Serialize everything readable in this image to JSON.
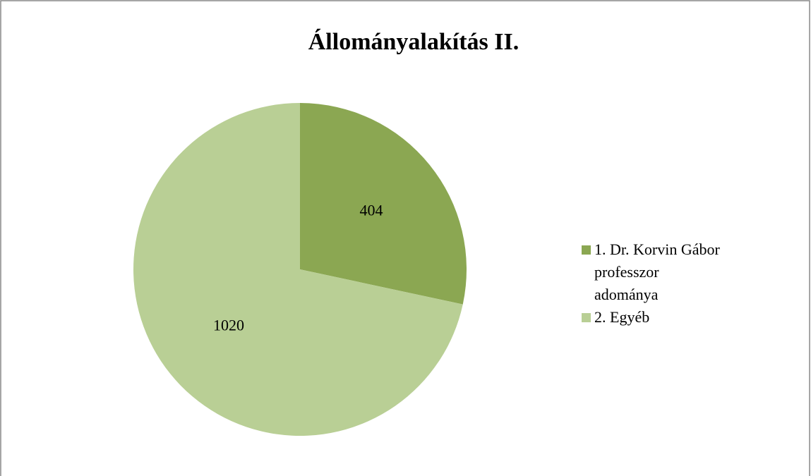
{
  "chart_data": {
    "type": "pie",
    "title": "Állományalakítás II.",
    "categories": [
      "1. Dr. Korvin Gábor professzor adománya",
      "2. Egyéb"
    ],
    "values": [
      404,
      1020
    ],
    "colors": [
      "#8ba752",
      "#b9cf95"
    ]
  }
}
